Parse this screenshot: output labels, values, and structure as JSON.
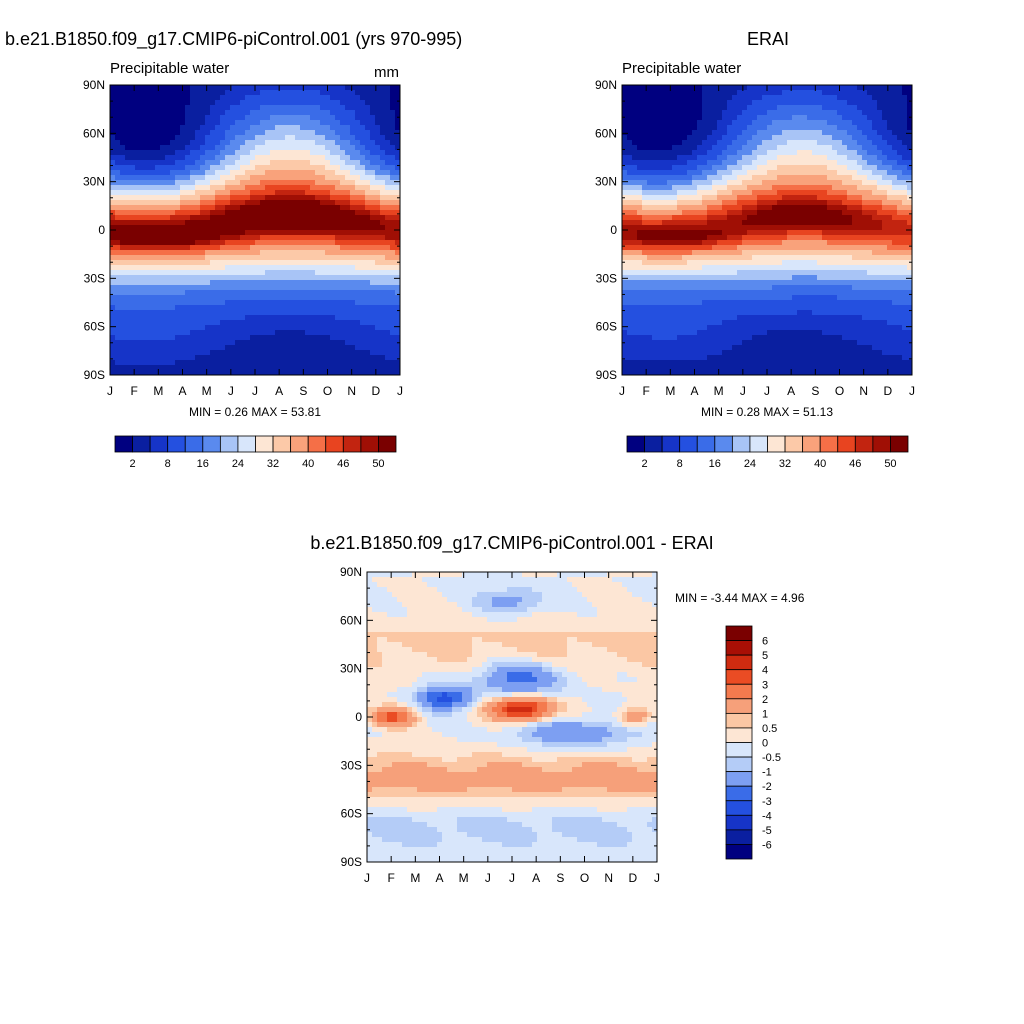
{
  "chart_data": [
    {
      "type": "heatmap",
      "title": "b.e21.B1850.f09_g17.CMIP6-piControl.001 (yrs 970-995)",
      "subtitle": "Precipitable water",
      "units": "mm",
      "x_tick_labels": [
        "J",
        "F",
        "M",
        "A",
        "M",
        "J",
        "J",
        "A",
        "S",
        "O",
        "N",
        "D",
        "J"
      ],
      "y_tick_labels": [
        "90N",
        "60N",
        "30N",
        "0",
        "30S",
        "60S",
        "90S"
      ],
      "y_values": [
        90,
        60,
        30,
        0,
        -30,
        -60,
        -90
      ],
      "min": 0.26,
      "max": 53.81,
      "stats_text": "MIN =   0.26 MAX =  53.81",
      "levels": [
        2,
        5,
        8,
        12,
        16,
        20,
        24,
        28,
        32,
        36,
        40,
        43,
        46,
        48,
        50
      ],
      "colorbar_labels": [
        "2",
        "8",
        "16",
        "24",
        "32",
        "40",
        "46",
        "50"
      ],
      "field": "precipitable_water_climatology",
      "itcz": "peaks near 5N in Jul-Sep, reaching 54 mm"
    },
    {
      "type": "heatmap",
      "title": "ERAI",
      "subtitle": "Precipitable water",
      "x_tick_labels": [
        "J",
        "F",
        "M",
        "A",
        "M",
        "J",
        "J",
        "A",
        "S",
        "O",
        "N",
        "D",
        "J"
      ],
      "y_tick_labels": [
        "90N",
        "60N",
        "30N",
        "0",
        "30S",
        "60S",
        "90S"
      ],
      "y_values": [
        90,
        60,
        30,
        0,
        -30,
        -60,
        -90
      ],
      "min": 0.28,
      "max": 51.13,
      "stats_text": "MIN =   0.28 MAX =  51.13",
      "levels": [
        2,
        5,
        8,
        12,
        16,
        20,
        24,
        28,
        32,
        36,
        40,
        43,
        46,
        48,
        50
      ],
      "colorbar_labels": [
        "2",
        "8",
        "16",
        "24",
        "32",
        "40",
        "46",
        "50"
      ],
      "field": "precipitable_water_climatology"
    },
    {
      "type": "heatmap",
      "title": "b.e21.B1850.f09_g17.CMIP6-piControl.001 - ERAI",
      "x_tick_labels": [
        "J",
        "F",
        "M",
        "A",
        "M",
        "J",
        "J",
        "A",
        "S",
        "O",
        "N",
        "D",
        "J"
      ],
      "y_tick_labels": [
        "90N",
        "60N",
        "30N",
        "0",
        "30S",
        "60S",
        "90S"
      ],
      "y_values": [
        90,
        60,
        30,
        0,
        -30,
        -60,
        -90
      ],
      "min": -3.44,
      "max": 4.96,
      "stats_text": "MIN =  -3.44 MAX =   4.96",
      "levels": [
        -6,
        -5,
        -4,
        -3,
        -2,
        -1,
        -0.5,
        0,
        0.5,
        1,
        2,
        3,
        4,
        5,
        6
      ],
      "colorbar_labels": [
        "6",
        "5",
        "4",
        "3",
        "2",
        "1",
        "0.5",
        "0",
        "-0.5",
        "-1",
        "-2",
        "-3",
        "-4",
        "-5",
        "-6"
      ],
      "field": "difference"
    }
  ],
  "colors": {
    "full_palette": [
      "#000080",
      "#0a1fa0",
      "#1634c8",
      "#2450e0",
      "#3a6ce8",
      "#5a8aee",
      "#a8c4f6",
      "#d8e6fb",
      "#fde6d4",
      "#fcc9a8",
      "#f9a27b",
      "#f56f47",
      "#e84420",
      "#c22410",
      "#a00f05",
      "#7a0000"
    ],
    "diff_palette": [
      "#000080",
      "#0a1fa0",
      "#1634c8",
      "#2450e0",
      "#3a6ce8",
      "#7d9ff2",
      "#b4ccf7",
      "#d8e6fb",
      "#fde6d4",
      "#fbc7a4",
      "#f6a07a",
      "#f47a4e",
      "#ea4c24",
      "#cf2b10",
      "#a80f05",
      "#7a0000"
    ]
  }
}
